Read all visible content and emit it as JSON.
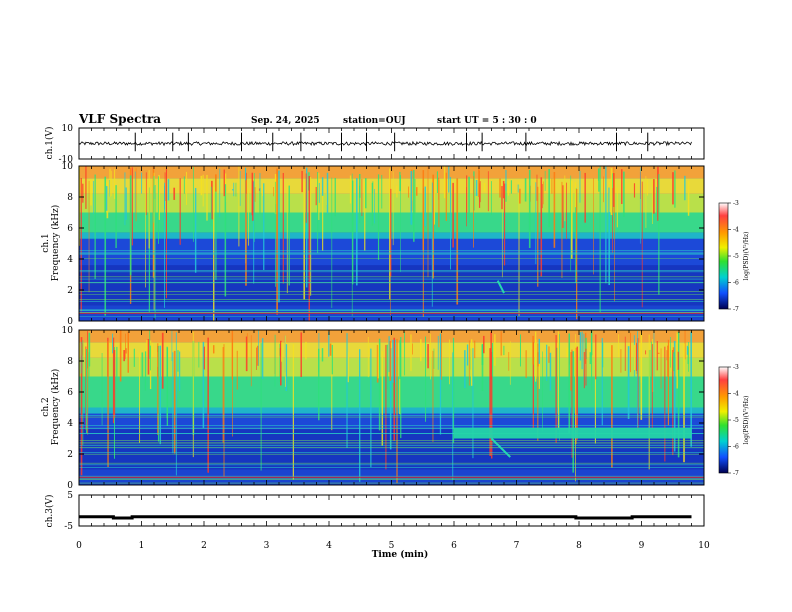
{
  "header": {
    "title": "VLF Spectra",
    "date": "Sep. 24, 2025",
    "station": "station=OUJ",
    "start": "start UT =  5 : 30 : 0"
  },
  "chart_data": [
    {
      "type": "line",
      "id": "ch1-waveform",
      "ylabel": "ch.1(V)",
      "ylim": [
        -10,
        10
      ],
      "yticks": [
        "10",
        "-10"
      ],
      "xlim": [
        0,
        10
      ],
      "baseline": 0
    },
    {
      "type": "heatmap",
      "id": "ch1-spectrogram",
      "ylabel": "ch.1",
      "ylabel2": "Frequency (kHz)",
      "ylim": [
        0,
        10
      ],
      "yticks": [
        "0",
        "2",
        "4",
        "6",
        "8",
        "10"
      ],
      "xlim": [
        0,
        10
      ],
      "colorbar": {
        "label": "log(PSD)(V²/Hz)",
        "range": [
          -7,
          -3
        ],
        "ticks": [
          "-3",
          "-4",
          "-5",
          "-6",
          "-7"
        ]
      }
    },
    {
      "type": "heatmap",
      "id": "ch2-spectrogram",
      "ylabel": "ch.2",
      "ylabel2": "Frequency (kHz)",
      "ylim": [
        0,
        10
      ],
      "yticks": [
        "0",
        "2",
        "4",
        "6",
        "8",
        "10"
      ],
      "xlim": [
        0,
        10
      ],
      "colorbar": {
        "label": "log(PSD)(V²/Hz)",
        "range": [
          -7,
          -3
        ],
        "ticks": [
          "-3",
          "-4",
          "-5",
          "-6",
          "-7"
        ]
      }
    },
    {
      "type": "line",
      "id": "ch3-waveform",
      "ylabel": "ch.3(V)",
      "ylim": [
        -5,
        5
      ],
      "yticks": [
        "5",
        "-5"
      ],
      "xlim": [
        0,
        10
      ],
      "xlabel": "Time (min)",
      "xticks": [
        "0",
        "1",
        "2",
        "3",
        "4",
        "5",
        "6",
        "7",
        "8",
        "9",
        "10"
      ],
      "level": -2,
      "dips": [
        [
          0.55,
          0.85
        ],
        [
          7.95,
          8.85
        ]
      ]
    }
  ]
}
